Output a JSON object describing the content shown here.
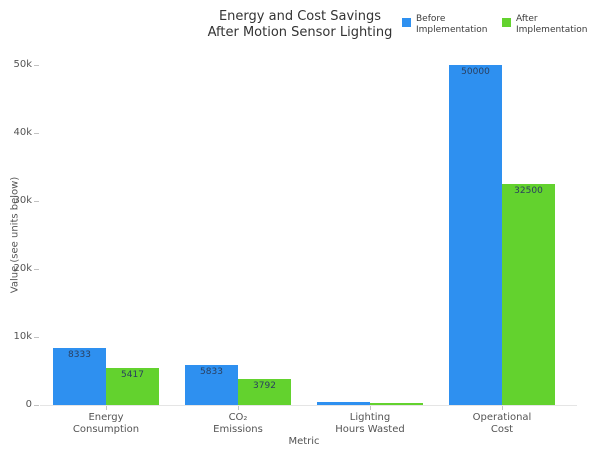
{
  "title": {
    "line1": "Energy and Cost Savings",
    "line2": "After Motion Sensor Lighting"
  },
  "chart_data": {
    "type": "bar",
    "title": "Energy and Cost Savings After Motion Sensor Lighting",
    "categories": [
      "Energy Consumption",
      "CO₂ Emissions",
      "Lighting Hours Wasted",
      "Operational Cost"
    ],
    "category_lines": [
      [
        "Energy",
        "Consumption"
      ],
      [
        "CO₂",
        "Emissions"
      ],
      [
        "Lighting",
        "Hours Wasted"
      ],
      [
        "Operational",
        "Cost"
      ]
    ],
    "series": [
      {
        "name": "Before Implementation",
        "color": "#2E90F0",
        "values": [
          8333,
          5833,
          417,
          50000
        ]
      },
      {
        "name": "After Implementation",
        "color": "#63D22E",
        "values": [
          5417,
          3792,
          271,
          32500
        ]
      }
    ],
    "xlabel": "Metric",
    "ylabel": "Value (see units below)",
    "ylim": [
      0,
      50000
    ],
    "ytick_labels": [
      "0",
      "10k",
      "20k",
      "30k",
      "40k",
      "50k"
    ],
    "ytick_values": [
      0,
      10000,
      20000,
      30000,
      40000,
      50000
    ],
    "grid": false,
    "legend_position": "top-right",
    "bar_label_color": "#2a3f5f"
  }
}
